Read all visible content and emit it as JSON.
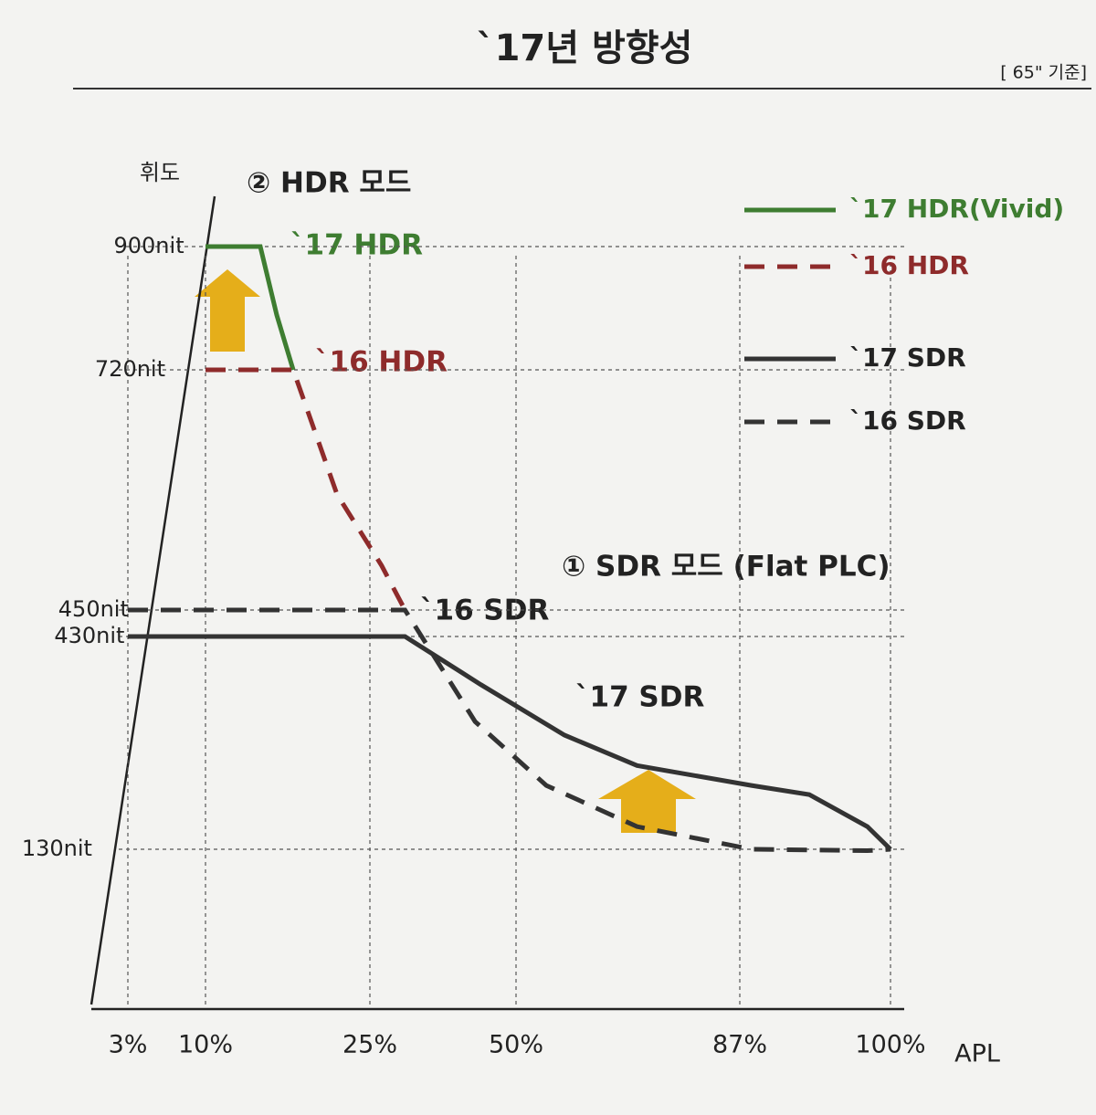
{
  "title": "`17년 방향성",
  "note": "[ 65\" 기준]",
  "chart_data": {
    "type": "line",
    "y_label": "휘도",
    "x_label": "APL",
    "xlim": [
      3,
      100
    ],
    "xticks": [
      {
        "value": 3,
        "label": "3%"
      },
      {
        "value": 10,
        "label": "10%"
      },
      {
        "value": 25,
        "label": "25%"
      },
      {
        "value": 50,
        "label": "50%"
      },
      {
        "value": 87,
        "label": "87%"
      },
      {
        "value": 100,
        "label": "100%"
      }
    ],
    "ylim": [
      0,
      900
    ],
    "yticks": [
      {
        "value": 130,
        "label": "130nit"
      },
      {
        "value": 430,
        "label": "430nit"
      },
      {
        "value": 450,
        "label": "450nit"
      },
      {
        "value": 720,
        "label": "720nit"
      },
      {
        "value": 900,
        "label": "900nit"
      }
    ],
    "grid": true,
    "series": [
      {
        "name": "`17 HDR(Vivid)",
        "color": "#3e7d31",
        "style": "solid",
        "x": [
          10,
          15,
          16.5,
          18
        ],
        "values": [
          900,
          900,
          800,
          720
        ]
      },
      {
        "name": "`16 HDR",
        "color": "#8e2b2b",
        "style": "dashed",
        "x": [
          10,
          18,
          22,
          27,
          31
        ],
        "values": [
          720,
          720,
          580,
          500,
          450
        ]
      },
      {
        "name": "`17 SDR",
        "color": "#333333",
        "style": "solid",
        "x": [
          3,
          31,
          44,
          58,
          70,
          88,
          93,
          98,
          100
        ],
        "values": [
          430,
          430,
          362,
          291,
          248,
          220,
          207,
          162,
          130
        ]
      },
      {
        "name": "`16 SDR",
        "color": "#333333",
        "style": "dashed",
        "x": [
          3,
          31,
          43,
          55,
          70,
          88,
          98,
          100
        ],
        "values": [
          450,
          450,
          310,
          220,
          162,
          130,
          128,
          130
        ]
      }
    ],
    "annotations": [
      "② HDR 모드",
      "`17 HDR",
      "`16 HDR",
      "`16 SDR",
      "`17 SDR",
      "① SDR 모드 (Flat PLC)"
    ]
  }
}
